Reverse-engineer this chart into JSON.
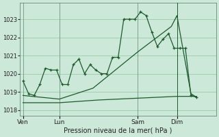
{
  "bg_color": "#cce8d8",
  "grid_color": "#99ccaa",
  "line_color": "#1a5c28",
  "title": "Pression niveau de la mer( hPa )",
  "ylabel_ticks": [
    1018,
    1019,
    1020,
    1021,
    1022,
    1023
  ],
  "ylim": [
    1017.7,
    1023.9
  ],
  "day_labels": [
    "Ven",
    "Lun",
    "Sam",
    "Dim"
  ],
  "day_positions": [
    0.5,
    7,
    21,
    28
  ],
  "vline_x": 28,
  "xlim": [
    0,
    35
  ],
  "line1_x": [
    0.5,
    1.5,
    2.5,
    3.5,
    4.5,
    5.5,
    6.5,
    7.5,
    8.5,
    9.5,
    10.5,
    11.5,
    12.5,
    13.5,
    14.5,
    15.5,
    16.5,
    17.5,
    18.5,
    19.5,
    20.5,
    21.5,
    22.5,
    23.5,
    24.5,
    25.5,
    26.5,
    27.5,
    28.5,
    29.5,
    30.5,
    31.5
  ],
  "line1_y": [
    1019.6,
    1018.9,
    1018.8,
    1019.4,
    1020.3,
    1020.2,
    1020.2,
    1019.4,
    1019.4,
    1020.5,
    1020.8,
    1020.0,
    1020.5,
    1020.2,
    1020.0,
    1020.0,
    1020.9,
    1020.9,
    1023.0,
    1023.0,
    1023.0,
    1023.4,
    1023.2,
    1022.3,
    1021.5,
    1021.9,
    1022.2,
    1021.4,
    1021.4,
    1021.4,
    1018.8,
    1018.7
  ],
  "line2_x": [
    0.5,
    7,
    13,
    21,
    27,
    28,
    30.5,
    31.5
  ],
  "line2_y": [
    1018.8,
    1018.6,
    1019.2,
    1021.2,
    1022.6,
    1023.2,
    1018.9,
    1018.7
  ],
  "line3_x": [
    0.5,
    7,
    14,
    21,
    28,
    31.5
  ],
  "line3_y": [
    1018.4,
    1018.4,
    1018.55,
    1018.65,
    1018.75,
    1018.75
  ]
}
